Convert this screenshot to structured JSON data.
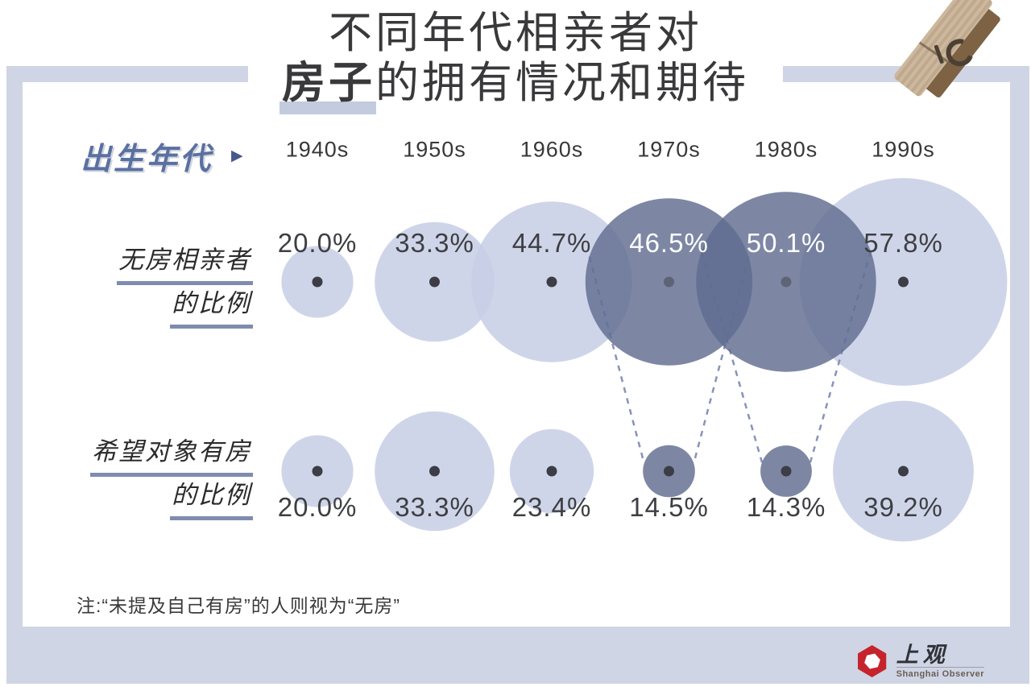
{
  "title": {
    "line1": "不同年代相亲者对",
    "line2_highlight": "房子",
    "line2_rest": "的拥有情况和期待"
  },
  "axis": {
    "label": "出生年代",
    "arrow": "▶"
  },
  "rows": [
    {
      "label_line1": "无房相亲者",
      "label_line2": "的比例"
    },
    {
      "label_line1": "希望对象有房",
      "label_line2": "的比例"
    }
  ],
  "note": "注:“未提及自己有房”的人则视为“无房”",
  "logo": {
    "cn": "上观",
    "en": "Shanghai Observer"
  },
  "icons": {
    "clothespin": "wooden-clothespin",
    "logo_mark": "red-hexagon-shutter"
  },
  "colors": {
    "panel": "#cfd5e4",
    "light_bubble": "#d2d7e8",
    "dark_bubble": "#7c86a4",
    "accent_blue": "#5a70a1",
    "underline": "#7e8cb0",
    "dashed_line": "#8793b9",
    "dot": "#3c3d45",
    "label_dark": "#3e3f43",
    "label_light": "#ffffff",
    "title_highlight_bar": "#c3cbdf",
    "logo_red": "#c5242c"
  },
  "chart_data": {
    "type": "scatter",
    "encoding": "bubble-size-proportional-to-value",
    "title": "不同年代相亲者对房子的拥有情况和期待",
    "unit": "%",
    "categories": [
      "1940s",
      "1950s",
      "1960s",
      "1970s",
      "1980s",
      "1990s"
    ],
    "series": [
      {
        "name": "无房相亲者的比例",
        "values": [
          20.0,
          33.3,
          44.7,
          46.5,
          50.1,
          57.8
        ],
        "labels": [
          "20.0%",
          "33.3%",
          "44.7%",
          "46.5%",
          "50.1%",
          "57.8%"
        ]
      },
      {
        "name": "希望对象有房的比例",
        "values": [
          20.0,
          33.3,
          23.4,
          14.5,
          14.3,
          39.2
        ],
        "labels": [
          "20.0%",
          "33.3%",
          "23.4%",
          "14.5%",
          "14.3%",
          "39.2%"
        ]
      }
    ],
    "highlighted_categories": [
      "1970s",
      "1980s"
    ],
    "annotation": "注:“未提及自己有房”的人则视为“无房”",
    "legend_position": "none",
    "grid": false
  }
}
